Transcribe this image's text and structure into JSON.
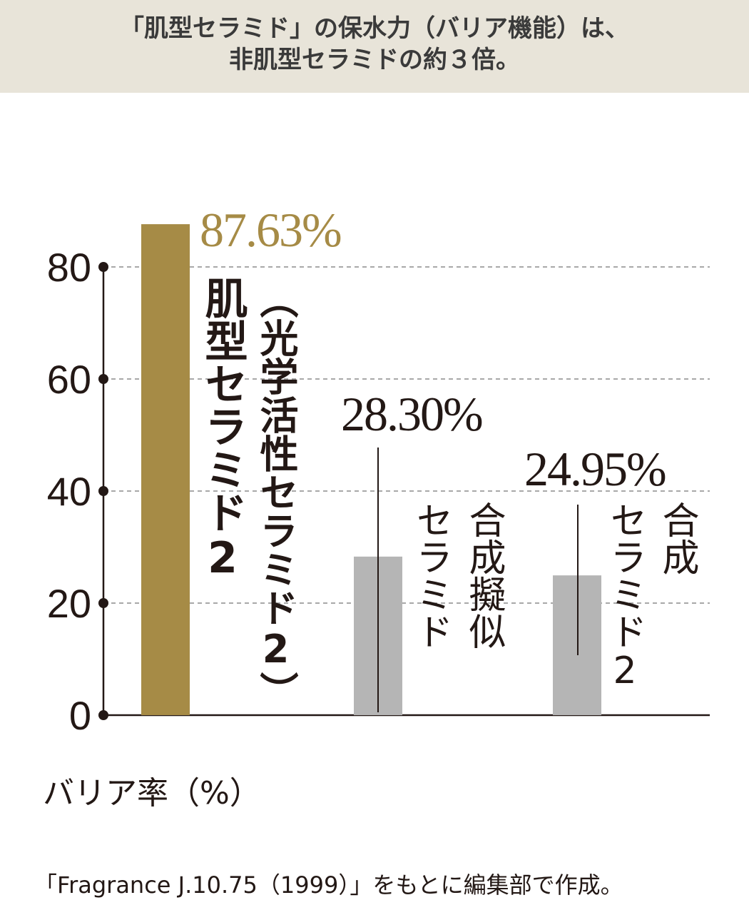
{
  "header": {
    "line1": "「肌型セラミド」の保水力（バリア機能）は、",
    "line2": "非肌型セラミドの約３倍。"
  },
  "chart_data": {
    "type": "bar",
    "categories": [
      "肌型セラミド2（光学活性セラミド2）",
      "合成擬似セラミド",
      "合成セラミド2"
    ],
    "values": [
      87.63,
      28.3,
      24.95
    ],
    "value_labels": [
      "87.63%",
      "28.30%",
      "24.95%"
    ],
    "label_lines": [
      [
        "肌型セラミド2",
        "（光学活性セラミド2）"
      ],
      [
        "合成擬似",
        "セラミド"
      ],
      [
        "合成",
        "セラミド2"
      ]
    ],
    "ylabel": "バリア率（%）",
    "yticks": [
      0,
      20,
      40,
      60,
      80
    ],
    "ylim": [
      0,
      100
    ],
    "grid": true,
    "colors": {
      "highlight": "#a68b46",
      "other": "#b5b5b5",
      "value_highlight": "#a68b46",
      "value_other": "#231815",
      "axis": "#231815",
      "grid": "#8c8c8c"
    }
  },
  "footnote": "「Fragrance J.10.75（1999）」をもとに編集部で作成。"
}
